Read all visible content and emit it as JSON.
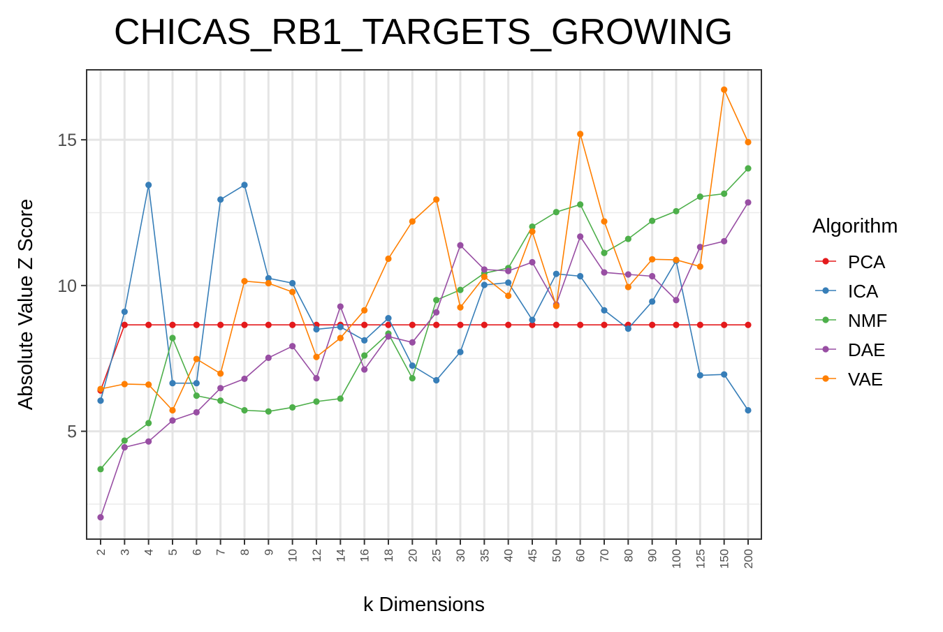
{
  "chart_data": {
    "type": "line",
    "title": "CHICAS_RB1_TARGETS_GROWING",
    "xlabel": "k Dimensions",
    "ylabel": "Absolute Value Z Score",
    "legend_title": "Algorithm",
    "legend_position": "right",
    "grid": true,
    "ylim": [
      1.3,
      17.4
    ],
    "y_ticks": [
      5,
      10,
      15
    ],
    "categories": [
      "2",
      "3",
      "4",
      "5",
      "6",
      "7",
      "8",
      "9",
      "10",
      "12",
      "14",
      "16",
      "18",
      "20",
      "25",
      "30",
      "35",
      "40",
      "45",
      "50",
      "60",
      "70",
      "80",
      "90",
      "100",
      "125",
      "150",
      "200"
    ],
    "series": [
      {
        "name": "PCA",
        "color": "#e41a1c",
        "values": [
          6.4,
          8.65,
          8.65,
          8.65,
          8.65,
          8.65,
          8.65,
          8.65,
          8.65,
          8.65,
          8.65,
          8.65,
          8.65,
          8.65,
          8.65,
          8.65,
          8.65,
          8.65,
          8.65,
          8.65,
          8.65,
          8.65,
          8.65,
          8.65,
          8.65,
          8.65,
          8.65,
          8.65
        ]
      },
      {
        "name": "ICA",
        "color": "#377eb8",
        "values": [
          6.05,
          9.1,
          13.45,
          6.65,
          6.65,
          12.95,
          13.45,
          10.25,
          10.08,
          8.5,
          8.58,
          8.12,
          8.88,
          7.25,
          6.75,
          7.72,
          10.02,
          10.1,
          8.82,
          10.4,
          10.32,
          9.15,
          8.52,
          9.45,
          10.85,
          6.92,
          6.95,
          5.72
        ]
      },
      {
        "name": "NMF",
        "color": "#4daf4a",
        "values": [
          3.7,
          4.68,
          5.28,
          8.2,
          6.22,
          6.05,
          5.72,
          5.68,
          5.82,
          6.02,
          6.12,
          7.6,
          8.35,
          6.82,
          9.5,
          9.85,
          10.42,
          10.6,
          12.02,
          12.52,
          12.78,
          11.12,
          11.6,
          12.22,
          12.55,
          13.05,
          13.15,
          14.02
        ]
      },
      {
        "name": "DAE",
        "color": "#984ea3",
        "values": [
          2.05,
          4.45,
          4.65,
          5.37,
          5.65,
          6.48,
          6.8,
          7.52,
          7.92,
          6.82,
          9.28,
          7.12,
          8.25,
          8.05,
          9.08,
          11.38,
          10.55,
          10.5,
          10.8,
          9.35,
          11.68,
          10.45,
          10.38,
          10.32,
          9.5,
          11.32,
          11.52,
          12.85
        ]
      },
      {
        "name": "VAE",
        "color": "#ff7f00",
        "values": [
          6.45,
          6.62,
          6.6,
          5.72,
          7.48,
          6.98,
          10.15,
          10.08,
          9.78,
          7.55,
          8.2,
          9.15,
          10.92,
          12.2,
          12.95,
          9.25,
          10.3,
          9.65,
          11.85,
          9.3,
          15.2,
          12.2,
          9.95,
          10.9,
          10.88,
          10.65,
          16.72,
          14.92
        ]
      }
    ]
  }
}
